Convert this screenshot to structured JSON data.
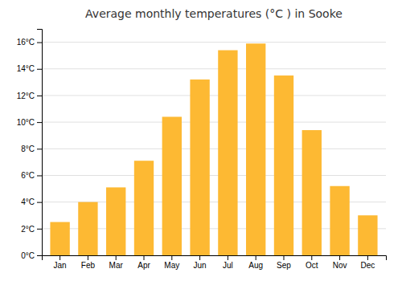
{
  "chart_data": {
    "type": "bar",
    "title": "Average monthly temperatures (°C ) in Sooke",
    "categories": [
      "Jan",
      "Feb",
      "Mar",
      "Apr",
      "May",
      "Jun",
      "Jul",
      "Aug",
      "Sep",
      "Oct",
      "Nov",
      "Dec"
    ],
    "values": [
      2.5,
      4.0,
      5.1,
      7.1,
      10.4,
      13.2,
      15.4,
      15.9,
      13.5,
      9.4,
      5.2,
      3.0
    ],
    "color": "#FDB933",
    "ylim": [
      0,
      17
    ],
    "yticks": [
      {
        "value": 0,
        "label": "0°C"
      },
      {
        "value": 2,
        "label": "2°C"
      },
      {
        "value": 4,
        "label": "4°C"
      },
      {
        "value": 6,
        "label": "6°C"
      },
      {
        "value": 8,
        "label": "8°C"
      },
      {
        "value": 10,
        "label": "10°C"
      },
      {
        "value": 12,
        "label": "12°C"
      },
      {
        "value": 14,
        "label": "14°C"
      },
      {
        "value": 16,
        "label": "16°C"
      }
    ],
    "grid": true
  }
}
